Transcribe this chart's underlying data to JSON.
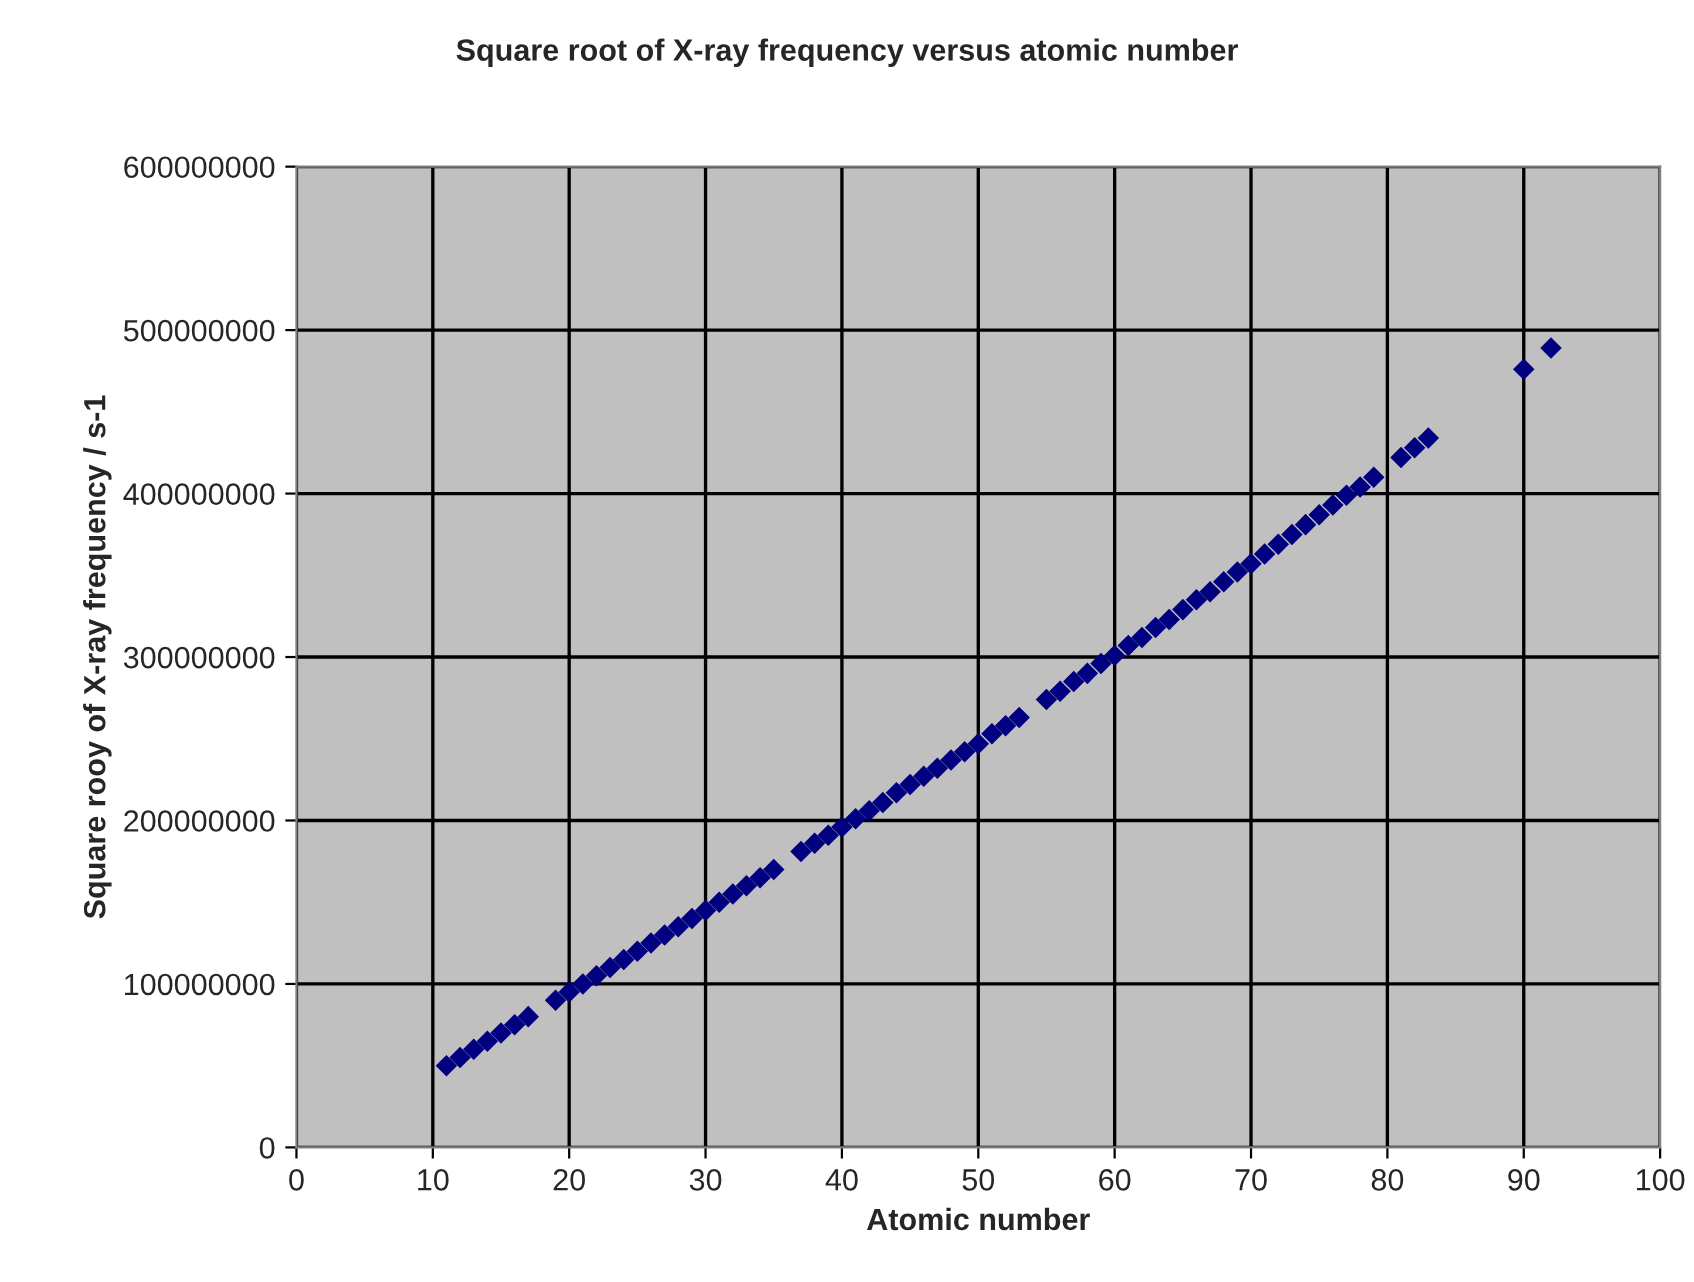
{
  "chart_data": {
    "type": "scatter",
    "title": "Square root of X-ray frequency versus atomic number",
    "xlabel": "Atomic number",
    "ylabel": "Square rooy of X-ray frequency / s-1",
    "x": [
      11,
      12,
      13,
      14,
      15,
      16,
      17,
      19,
      20,
      21,
      22,
      23,
      24,
      25,
      26,
      27,
      28,
      29,
      30,
      31,
      32,
      33,
      34,
      35,
      37,
      38,
      39,
      40,
      41,
      42,
      43,
      44,
      45,
      46,
      47,
      48,
      49,
      50,
      51,
      52,
      53,
      55,
      56,
      57,
      58,
      59,
      60,
      61,
      62,
      63,
      64,
      65,
      66,
      67,
      68,
      69,
      70,
      71,
      72,
      73,
      74,
      75,
      76,
      77,
      78,
      79,
      81,
      82,
      83,
      90,
      92
    ],
    "series": [
      {
        "color": "#000080",
        "values": [
          50000000,
          55000000,
          60000000,
          65000000,
          70000000,
          75000000,
          80000000,
          90000000,
          95000000,
          100000000,
          105000000,
          110000000,
          115000000,
          120000000,
          125000000,
          130000000,
          135000000,
          140000000,
          145000000,
          150000000,
          155000000,
          160000000,
          165000000,
          170000000,
          181000000,
          186000000,
          191000000,
          196000000,
          201000000,
          206000000,
          211000000,
          217000000,
          222000000,
          227000000,
          232000000,
          237000000,
          242000000,
          247000000,
          253000000,
          258000000,
          263000000,
          274000000,
          279000000,
          285000000,
          290000000,
          296000000,
          301000000,
          307000000,
          312000000,
          318000000,
          323000000,
          329000000,
          335000000,
          340000000,
          346000000,
          352000000,
          357000000,
          363000000,
          369000000,
          375000000,
          381000000,
          387000000,
          393000000,
          399000000,
          404000000,
          410000000,
          422000000,
          428000000,
          434000000,
          476000000,
          489000000
        ]
      }
    ],
    "xlim": [
      0,
      100
    ],
    "xticks": [
      0,
      10,
      20,
      30,
      40,
      50,
      60,
      70,
      80,
      90,
      100
    ],
    "ylim": [
      0,
      600000000
    ],
    "yticks": [
      0,
      100000000,
      200000000,
      300000000,
      400000000,
      500000000,
      600000000
    ],
    "grid": true,
    "marker": "diamond",
    "legend": false
  }
}
